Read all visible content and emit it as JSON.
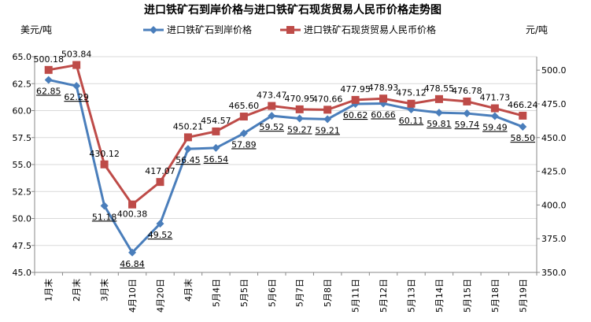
{
  "chart_data": {
    "type": "line",
    "title": "进口铁矿石到岸价格与进口铁矿石现货贸易人民币价格走势图",
    "y_left_unit": "美元/吨",
    "y_right_unit": "元/吨",
    "categories": [
      "1月末",
      "2月末",
      "3月末",
      "4月10日",
      "4月20日",
      "4月末",
      "5月4日",
      "5月5日",
      "5月6日",
      "5月7日",
      "5月8日",
      "5月11日",
      "5月12日",
      "5月13日",
      "5月14日",
      "5月15日",
      "5月18日",
      "5月19日"
    ],
    "y_left": {
      "min": 45.0,
      "max": 65.0,
      "ticks": [
        "45.0",
        "47.5",
        "50.0",
        "52.5",
        "55.0",
        "57.5",
        "60.0",
        "62.5",
        "65.0"
      ]
    },
    "y_right": {
      "min": 350.0,
      "max": 510.0,
      "ticks": [
        "350.0",
        "375.0",
        "400.0",
        "425.0",
        "450.0",
        "475.0",
        "500.0"
      ]
    },
    "grid": true,
    "legend": "top",
    "series": [
      {
        "name": "进口铁矿石到岸价格",
        "axis": "left",
        "color": "#4a7ebb",
        "marker": "diamond",
        "values": [
          62.85,
          62.29,
          51.18,
          46.84,
          49.52,
          56.45,
          56.54,
          57.89,
          59.52,
          59.27,
          59.21,
          60.62,
          60.66,
          60.11,
          59.81,
          59.74,
          59.49,
          58.5
        ],
        "labels": [
          "62.85",
          "62.29",
          "51.18",
          "46.84",
          "49.52",
          "56.45",
          "56.54",
          "57.89",
          "59.52",
          "59.27",
          "59.21",
          "60.62",
          "60.66",
          "60.11",
          "59.81",
          "59.74",
          "59.49",
          "58.50"
        ]
      },
      {
        "name": "进口铁矿石现货贸易人民币价格",
        "axis": "right",
        "color": "#be4b48",
        "marker": "square",
        "values": [
          500.18,
          503.84,
          430.12,
          400.38,
          417.07,
          450.21,
          454.57,
          465.6,
          473.47,
          470.95,
          470.66,
          477.95,
          478.93,
          475.12,
          478.55,
          476.78,
          471.73,
          466.24
        ],
        "labels": [
          "500.18",
          "503.84",
          "430.12",
          "400.38",
          "417.07",
          "450.21",
          "454.57",
          "465.60",
          "473.47",
          "470.95",
          "470.66",
          "477.95",
          "478.93",
          "475.12",
          "478.55",
          "476.78",
          "471.73",
          "466.24"
        ]
      }
    ]
  }
}
